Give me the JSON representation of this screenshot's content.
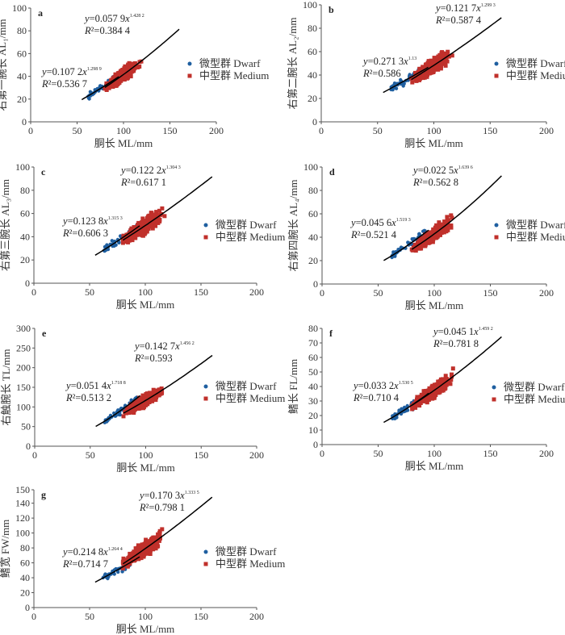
{
  "chart_data": [
    {
      "type": "scatter",
      "panel": "a",
      "xlabel": "胴长 ML/mm",
      "ylabel": "右第一腕长 AL₁/mm",
      "xlim": [
        0,
        200
      ],
      "ylim": [
        0,
        100
      ],
      "xticks": [
        0,
        50,
        100,
        150,
        200
      ],
      "yticks": [
        0,
        20,
        40,
        60,
        80,
        100
      ],
      "series": [
        {
          "name": "微型群 Dwarf",
          "color": "#1f5fa0",
          "x_range": [
            55,
            95
          ],
          "fit": {
            "a": "0.107 2",
            "b": "1.298 9",
            "r2": "0.536 7"
          }
        },
        {
          "name": "中型群 Medium",
          "color": "#c0302b",
          "x_range": [
            80,
            160
          ],
          "fit": {
            "a": "0.057 9",
            "b": "1.428 2",
            "r2": "0.384 4"
          }
        }
      ]
    },
    {
      "type": "scatter",
      "panel": "b",
      "xlabel": "胴长 ML/mm",
      "ylabel": "右第二腕长 AL₂/mm",
      "xlim": [
        0,
        200
      ],
      "ylim": [
        0,
        100
      ],
      "xticks": [
        0,
        50,
        100,
        150,
        200
      ],
      "yticks": [
        0,
        20,
        40,
        60,
        80,
        100
      ],
      "series": [
        {
          "name": "微型群 Dwarf",
          "color": "#1f5fa0",
          "x_range": [
            55,
            95
          ],
          "fit": {
            "a": "0.271 3",
            "b": "1.13",
            "r2": "0.586"
          }
        },
        {
          "name": "中型群 Medium",
          "color": "#c0302b",
          "x_range": [
            80,
            160
          ],
          "fit": {
            "a": "0.121 7",
            "b": "1.299 3",
            "r2": "0.587 4"
          }
        }
      ]
    },
    {
      "type": "scatter",
      "panel": "c",
      "xlabel": "胴长 ML/mm",
      "ylabel": "右第三腕长 AL₃/mm",
      "xlim": [
        0,
        200
      ],
      "ylim": [
        0,
        100
      ],
      "xticks": [
        0,
        50,
        100,
        150,
        200
      ],
      "yticks": [
        0,
        20,
        40,
        60,
        80,
        100
      ],
      "series": [
        {
          "name": "微型群 Dwarf",
          "color": "#1f5fa0",
          "x_range": [
            55,
            95
          ],
          "fit": {
            "a": "0.123 8",
            "b": "1.315 3",
            "r2": "0.606 3"
          }
        },
        {
          "name": "中型群 Medium",
          "color": "#c0302b",
          "x_range": [
            80,
            160
          ],
          "fit": {
            "a": "0.122 2",
            "b": "1.304 3",
            "r2": "0.617 1"
          }
        }
      ]
    },
    {
      "type": "scatter",
      "panel": "d",
      "xlabel": "胴长 ML/mm",
      "ylabel": "右第四腕长 AL₄/mm",
      "xlim": [
        0,
        200
      ],
      "ylim": [
        0,
        100
      ],
      "xticks": [
        0,
        50,
        100,
        150,
        200
      ],
      "yticks": [
        0,
        20,
        40,
        60,
        80,
        100
      ],
      "series": [
        {
          "name": "微型群 Dwarf",
          "color": "#1f5fa0",
          "x_range": [
            55,
            95
          ],
          "fit": {
            "a": "0.045 6",
            "b": "1.519 3",
            "r2": "0.521 4"
          }
        },
        {
          "name": "中型群 Medium",
          "color": "#c0302b",
          "x_range": [
            80,
            160
          ],
          "fit": {
            "a": "0.022 5",
            "b": "1.639 6",
            "r2": "0.562 8"
          }
        }
      ]
    },
    {
      "type": "scatter",
      "panel": "e",
      "xlabel": "胴长 ML/mm",
      "ylabel": "右触腕长 TL/mm",
      "xlim": [
        0,
        200
      ],
      "ylim": [
        0,
        300
      ],
      "xticks": [
        0,
        50,
        100,
        150,
        200
      ],
      "yticks": [
        0,
        50,
        100,
        150,
        200,
        250,
        300
      ],
      "series": [
        {
          "name": "微型群 Dwarf",
          "color": "#1f5fa0",
          "x_range": [
            55,
            95
          ],
          "fit": {
            "a": "0.051 4",
            "b": "1.718 8",
            "r2": "0.513 2"
          }
        },
        {
          "name": "中型群 Medium",
          "color": "#c0302b",
          "x_range": [
            80,
            160
          ],
          "fit": {
            "a": "0.142 7",
            "b": "1.456 2",
            "r2": "0.593"
          }
        }
      ]
    },
    {
      "type": "scatter",
      "panel": "f",
      "xlabel": "胴长 ML/mm",
      "ylabel": "鳍长 FL/mm",
      "xlim": [
        0,
        200
      ],
      "ylim": [
        0,
        80
      ],
      "xticks": [
        0,
        50,
        100,
        150,
        200
      ],
      "yticks": [
        0,
        10,
        20,
        30,
        40,
        50,
        60,
        70,
        80
      ],
      "series": [
        {
          "name": "微型群 Dwarf",
          "color": "#1f5fa0",
          "x_range": [
            55,
            95
          ],
          "fit": {
            "a": "0.033 2",
            "b": "1.530 5",
            "r2": "0.710 4"
          }
        },
        {
          "name": "中型群 Medium",
          "color": "#c0302b",
          "x_range": [
            80,
            160
          ],
          "fit": {
            "a": "0.045 1",
            "b": "1.459 2",
            "r2": "0.781 8"
          }
        }
      ]
    },
    {
      "type": "scatter",
      "panel": "g",
      "xlabel": "胴长 ML/mm",
      "ylabel": "鳍宽 FW/mm",
      "xlim": [
        0,
        200
      ],
      "ylim": [
        0,
        150
      ],
      "xticks": [
        0,
        50,
        100,
        150,
        200
      ],
      "yticks": [
        0,
        20,
        40,
        60,
        80,
        100,
        120,
        140,
        150
      ],
      "series": [
        {
          "name": "微型群 Dwarf",
          "color": "#1f5fa0",
          "x_range": [
            55,
            95
          ],
          "fit": {
            "a": "0.214 8",
            "b": "1.264 4",
            "r2": "0.714 7"
          }
        },
        {
          "name": "中型群 Medium",
          "color": "#c0302b",
          "x_range": [
            80,
            160
          ],
          "fit": {
            "a": "0.170 3",
            "b": "1.333 5",
            "r2": "0.798 1"
          }
        }
      ]
    }
  ]
}
